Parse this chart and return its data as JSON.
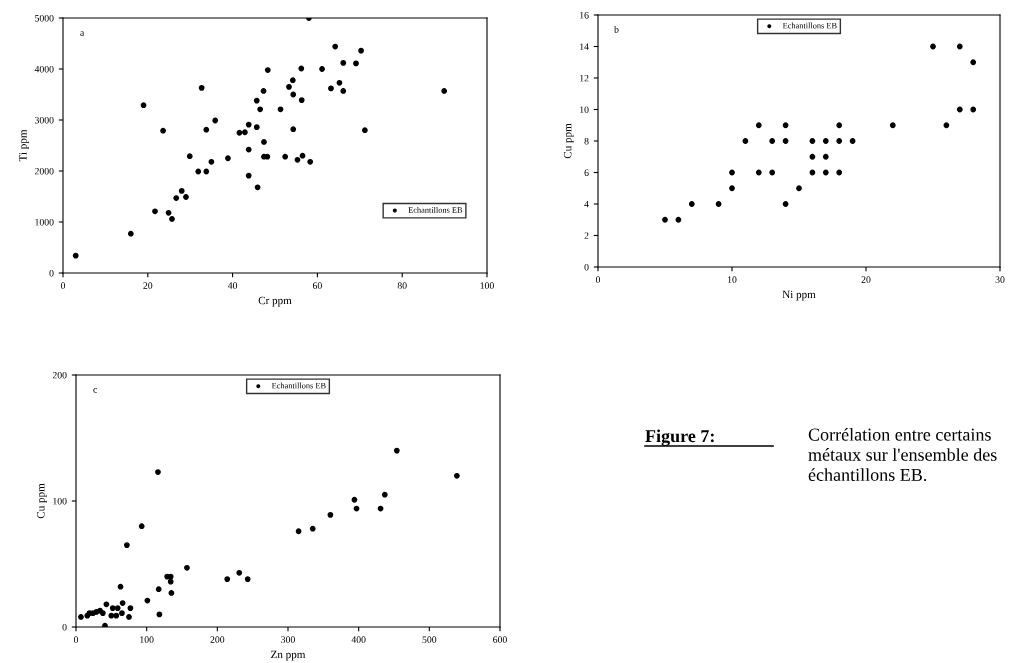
{
  "chart_data": [
    {
      "type": "scatter",
      "xlabel": "Cr ppm",
      "ylabel": "Ti ppm",
      "xlim": [
        0,
        100
      ],
      "ylim": [
        0,
        5000
      ],
      "xticks": [
        0,
        20,
        40,
        60,
        80,
        100
      ],
      "yticks": [
        0,
        1000,
        2000,
        3000,
        4000,
        5000
      ],
      "grid": false,
      "legend": "bottom right",
      "marker": "circle",
      "annotations": [
        "a"
      ],
      "series": [
        {
          "name": "Echantillons EB",
          "color": "#000000",
          "x": [
            3,
            16,
            19,
            21.7,
            23.6,
            24.9,
            25.7,
            26.7,
            28,
            29,
            29.9,
            31.9,
            32.7,
            33.8,
            33.8,
            35,
            35.9,
            38.9,
            41.6,
            42.9,
            43.8,
            43.8,
            43.8,
            45.7,
            45.7,
            45.9,
            46.5,
            58,
            64.2,
            70.3,
            66.1,
            69.1,
            48.3,
            56.2,
            61.1,
            54.2,
            53.3,
            54.3,
            63.2,
            65.2,
            66.1,
            89.9,
            47.3,
            56.3,
            51.3,
            54.3,
            71.2,
            47.4,
            47.4,
            48.2,
            52.4,
            55.3,
            56.5,
            58.3
          ],
          "values": [
            340,
            770,
            3290,
            1210,
            2790,
            1180,
            1060,
            1470,
            1610,
            1490,
            2290,
            1990,
            3630,
            2810,
            1990,
            2180,
            2990,
            2250,
            2750,
            2760,
            2910,
            2420,
            1910,
            3380,
            2860,
            1680,
            3210,
            5000,
            4440,
            4360,
            4120,
            4110,
            3980,
            4010,
            4000,
            3780,
            3650,
            3500,
            3620,
            3730,
            3570,
            3570,
            3570,
            3390,
            3210,
            2820,
            2800,
            2570,
            2280,
            2280,
            2280,
            2220,
            2300,
            2180
          ]
        }
      ]
    },
    {
      "type": "scatter",
      "xlabel": "Ni ppm",
      "ylabel": "Cu ppm",
      "xlim": [
        0,
        30
      ],
      "ylim": [
        0,
        16
      ],
      "xticks": [
        0,
        10,
        20,
        30
      ],
      "yticks": [
        0,
        2,
        4,
        6,
        8,
        10,
        12,
        14,
        16
      ],
      "grid": false,
      "legend": "top",
      "marker": "circle",
      "annotations": [
        "b"
      ],
      "series": [
        {
          "name": "Echantillons EB",
          "color": "#000000",
          "x": [
            5,
            6,
            7,
            9,
            10,
            10,
            11,
            12,
            12,
            13,
            13,
            14,
            14,
            14,
            15,
            16,
            16,
            16,
            17,
            17,
            17,
            18,
            18,
            18,
            19,
            22,
            25,
            26,
            27,
            27,
            28,
            28
          ],
          "values": [
            3,
            3,
            4,
            4,
            5,
            6,
            8,
            9,
            6,
            8,
            6,
            9,
            8,
            4,
            5,
            8,
            7,
            6,
            8,
            7,
            6,
            9,
            8,
            6,
            8,
            9,
            14,
            9,
            14,
            10,
            13,
            10
          ]
        }
      ]
    },
    {
      "type": "scatter",
      "xlabel": "Zn ppm",
      "ylabel": "Cu ppm",
      "xlim": [
        0,
        600
      ],
      "ylim": [
        0,
        200
      ],
      "xticks": [
        0,
        100,
        200,
        300,
        400,
        500,
        600
      ],
      "yticks": [
        0,
        100,
        200
      ],
      "grid": false,
      "legend": "top",
      "marker": "circle",
      "annotations": [
        "c",
        "Figure 7:",
        "Corrélation entre certains métaux sur l'ensemble des échantillons EB."
      ],
      "series": [
        {
          "name": "Echantillons EB",
          "color": "#000000",
          "x": [
            454,
            539,
            116,
            394,
            437,
            397,
            431,
            360,
            315,
            335,
            93,
            72,
            157,
            231,
            214,
            243,
            129,
            134,
            134,
            117,
            135,
            101,
            118,
            63,
            66,
            7,
            16,
            19,
            24,
            29,
            34,
            38,
            43,
            41,
            52,
            57,
            59,
            77,
            75,
            65,
            50
          ],
          "values": [
            140,
            120,
            123,
            101,
            105,
            94,
            94,
            89,
            76,
            78,
            80,
            65,
            47,
            43,
            38,
            38,
            40,
            40,
            36,
            30,
            27,
            21,
            10,
            32,
            19,
            8,
            9,
            11,
            11,
            12,
            13,
            11,
            18,
            1,
            15,
            9,
            15,
            15,
            8,
            11,
            9
          ]
        }
      ]
    }
  ]
}
